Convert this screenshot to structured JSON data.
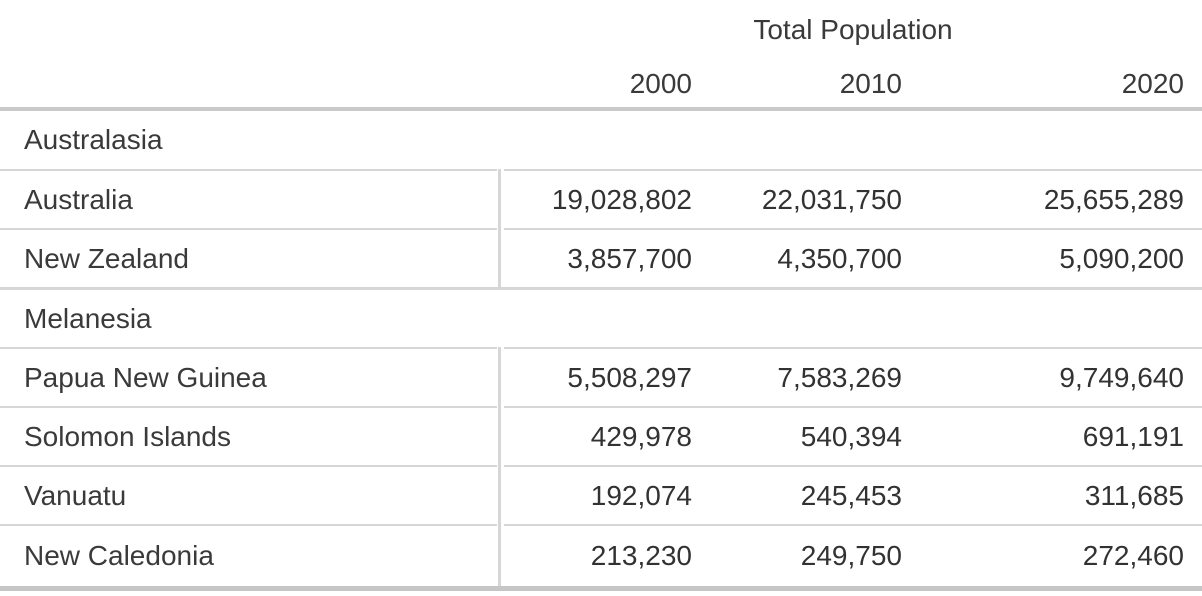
{
  "chart_data": {
    "type": "table",
    "title": "Total Population",
    "columns": [
      "2000",
      "2010",
      "2020"
    ],
    "sections": [
      {
        "name": "Australasia",
        "rows": [
          {
            "name": "Australia",
            "values": [
              "19,028,802",
              "22,031,750",
              "25,655,289"
            ]
          },
          {
            "name": "New Zealand",
            "values": [
              "3,857,700",
              "4,350,700",
              "5,090,200"
            ]
          }
        ]
      },
      {
        "name": "Melanesia",
        "rows": [
          {
            "name": "Papua New Guinea",
            "values": [
              "5,508,297",
              "7,583,269",
              "9,749,640"
            ]
          },
          {
            "name": "Solomon Islands",
            "values": [
              "429,978",
              "540,394",
              "691,191"
            ]
          },
          {
            "name": "Vanuatu",
            "values": [
              "192,074",
              "245,453",
              "311,685"
            ]
          },
          {
            "name": "New Caledonia",
            "values": [
              "213,230",
              "249,750",
              "272,460"
            ]
          }
        ]
      }
    ],
    "values_numeric": {
      "Australia": [
        19028802,
        22031750,
        25655289
      ],
      "New Zealand": [
        3857700,
        4350700,
        5090200
      ],
      "Papua New Guinea": [
        5508297,
        7583269,
        9749640
      ],
      "Solomon Islands": [
        429978,
        540394,
        691191
      ],
      "Vanuatu": [
        192074,
        245453,
        311685
      ],
      "New Caledonia": [
        213230,
        249750,
        272460
      ]
    },
    "layout": {
      "legend": "none",
      "grid": "row-separators",
      "header_rule": true,
      "bottom_rule": true
    },
    "colors": {
      "text": "#3a3a3a",
      "number_text": "#323232",
      "separator": "#d6d6d6",
      "rule": "#c9c9c9",
      "background": "#ffffff"
    }
  }
}
